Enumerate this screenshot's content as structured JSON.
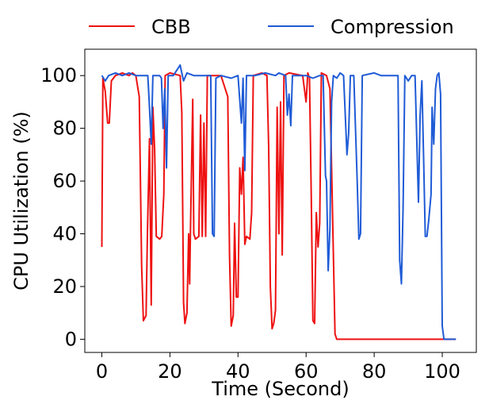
{
  "chart_data": {
    "type": "line",
    "xlabel": "Time (Second)",
    "ylabel": "CPU Utilization (%)",
    "xlim": [
      -5,
      110
    ],
    "ylim": [
      -5,
      110
    ],
    "xticks": [
      0,
      20,
      40,
      60,
      80,
      100
    ],
    "yticks": [
      0,
      20,
      40,
      60,
      80,
      100
    ],
    "grid": false,
    "legend_placement": "above-plot",
    "series": [
      {
        "name": "CBB",
        "color": "#ee1111",
        "points": [
          [
            0,
            35
          ],
          [
            0.3,
            99
          ],
          [
            1,
            94
          ],
          [
            1.7,
            82
          ],
          [
            2.2,
            82
          ],
          [
            2.8,
            98
          ],
          [
            4,
            100
          ],
          [
            6,
            101
          ],
          [
            8,
            100
          ],
          [
            9,
            101
          ],
          [
            10,
            100
          ],
          [
            11,
            92
          ],
          [
            11.7,
            28
          ],
          [
            12.2,
            7
          ],
          [
            13,
            9
          ],
          [
            13.4,
            40
          ],
          [
            14,
            76
          ],
          [
            14.5,
            13
          ],
          [
            15,
            88
          ],
          [
            15.5,
            72
          ],
          [
            16,
            39
          ],
          [
            17,
            38
          ],
          [
            17.6,
            39
          ],
          [
            18.2,
            55
          ],
          [
            18.6,
            100
          ],
          [
            20,
            101
          ],
          [
            23,
            100
          ],
          [
            23.5,
            86
          ],
          [
            24,
            14
          ],
          [
            24.4,
            6
          ],
          [
            25,
            10
          ],
          [
            25.5,
            40
          ],
          [
            25.8,
            21
          ],
          [
            26,
            39
          ],
          [
            26.7,
            91
          ],
          [
            27,
            40
          ],
          [
            27.5,
            38
          ],
          [
            28.5,
            39
          ],
          [
            29,
            85
          ],
          [
            29.5,
            39
          ],
          [
            30,
            82
          ],
          [
            30.5,
            39
          ],
          [
            31,
            100
          ],
          [
            33,
            100
          ],
          [
            35,
            100
          ],
          [
            37,
            92
          ],
          [
            37.5,
            32
          ],
          [
            38,
            5
          ],
          [
            38.6,
            9
          ],
          [
            39,
            44
          ],
          [
            39.5,
            16
          ],
          [
            40,
            16
          ],
          [
            40.5,
            65
          ],
          [
            41,
            55
          ],
          [
            41.5,
            69
          ],
          [
            42,
            36
          ],
          [
            42.5,
            39
          ],
          [
            43.5,
            38
          ],
          [
            44,
            48
          ],
          [
            44.5,
            100
          ],
          [
            47,
            101
          ],
          [
            48.5,
            100
          ],
          [
            49,
            73
          ],
          [
            49.5,
            20
          ],
          [
            50,
            4
          ],
          [
            50.5,
            6
          ],
          [
            51,
            11
          ],
          [
            51.5,
            88
          ],
          [
            52,
            40
          ],
          [
            52.5,
            90
          ],
          [
            53,
            32
          ],
          [
            53.5,
            100
          ],
          [
            55,
            101
          ],
          [
            59,
            100
          ],
          [
            60,
            90
          ],
          [
            60.5,
            101
          ],
          [
            61,
            99
          ],
          [
            61.5,
            55
          ],
          [
            62,
            7
          ],
          [
            62.5,
            6
          ],
          [
            63,
            48
          ],
          [
            63.5,
            35
          ],
          [
            64,
            44
          ],
          [
            64.5,
            101
          ],
          [
            66,
            100
          ],
          [
            67,
            95
          ],
          [
            67.5,
            65
          ],
          [
            68.5,
            2
          ],
          [
            69,
            0
          ],
          [
            70,
            0
          ],
          [
            75,
            0
          ],
          [
            80,
            0
          ],
          [
            85,
            0
          ],
          [
            90,
            0
          ],
          [
            95,
            0
          ],
          [
            100,
            0
          ],
          [
            104,
            0
          ]
        ]
      },
      {
        "name": "Compression",
        "color": "#1f5bd6",
        "points": [
          [
            0,
            100
          ],
          [
            1,
            98
          ],
          [
            2,
            100
          ],
          [
            4,
            101
          ],
          [
            6,
            100
          ],
          [
            8,
            101
          ],
          [
            10,
            100
          ],
          [
            12,
            100
          ],
          [
            13.5,
            100
          ],
          [
            14,
            88
          ],
          [
            14.5,
            74
          ],
          [
            15,
            100
          ],
          [
            17,
            100
          ],
          [
            17.5,
            99
          ],
          [
            18,
            80
          ],
          [
            18.5,
            95
          ],
          [
            19,
            65
          ],
          [
            19.5,
            100
          ],
          [
            21,
            100
          ],
          [
            22,
            102
          ],
          [
            23,
            104
          ],
          [
            23.5,
            101
          ],
          [
            24,
            98
          ],
          [
            25,
            101
          ],
          [
            27,
            100
          ],
          [
            30,
            100
          ],
          [
            32,
            100
          ],
          [
            32.5,
            40
          ],
          [
            33,
            39
          ],
          [
            33.5,
            99
          ],
          [
            35,
            100
          ],
          [
            38,
            99
          ],
          [
            40,
            100
          ],
          [
            41,
            82
          ],
          [
            41.5,
            99
          ],
          [
            42,
            64
          ],
          [
            42.5,
            100
          ],
          [
            45,
            100
          ],
          [
            48,
            101
          ],
          [
            51,
            100
          ],
          [
            52,
            101
          ],
          [
            54,
            100
          ],
          [
            54.5,
            85
          ],
          [
            55,
            93
          ],
          [
            55.5,
            81
          ],
          [
            56,
            100
          ],
          [
            60,
            100
          ],
          [
            62,
            99
          ],
          [
            64,
            100
          ],
          [
            65,
            100
          ],
          [
            65.7,
            62
          ],
          [
            66,
            60
          ],
          [
            66.5,
            26
          ],
          [
            67,
            42
          ],
          [
            67.5,
            90
          ],
          [
            68,
            100
          ],
          [
            69,
            99
          ],
          [
            70,
            101
          ],
          [
            71,
            100
          ],
          [
            72,
            70
          ],
          [
            72.5,
            78
          ],
          [
            73,
            100
          ],
          [
            74,
            100
          ],
          [
            75,
            60
          ],
          [
            75.5,
            38
          ],
          [
            76,
            40
          ],
          [
            76.5,
            100
          ],
          [
            80,
            101
          ],
          [
            82,
            100
          ],
          [
            85,
            100
          ],
          [
            87,
            100
          ],
          [
            87.5,
            30
          ],
          [
            88,
            21
          ],
          [
            88.5,
            50
          ],
          [
            89,
            100
          ],
          [
            90,
            98
          ],
          [
            91,
            100
          ],
          [
            92,
            100
          ],
          [
            93,
            52
          ],
          [
            93.5,
            85
          ],
          [
            94,
            98
          ],
          [
            94.5,
            70
          ],
          [
            95,
            39
          ],
          [
            95.5,
            39
          ],
          [
            96,
            45
          ],
          [
            96.7,
            55
          ],
          [
            97,
            88
          ],
          [
            97.5,
            74
          ],
          [
            98,
            95
          ],
          [
            98.5,
            100
          ],
          [
            99,
            101
          ],
          [
            99.5,
            93
          ],
          [
            100,
            5
          ],
          [
            100.5,
            0
          ],
          [
            104,
            0
          ]
        ]
      }
    ]
  }
}
